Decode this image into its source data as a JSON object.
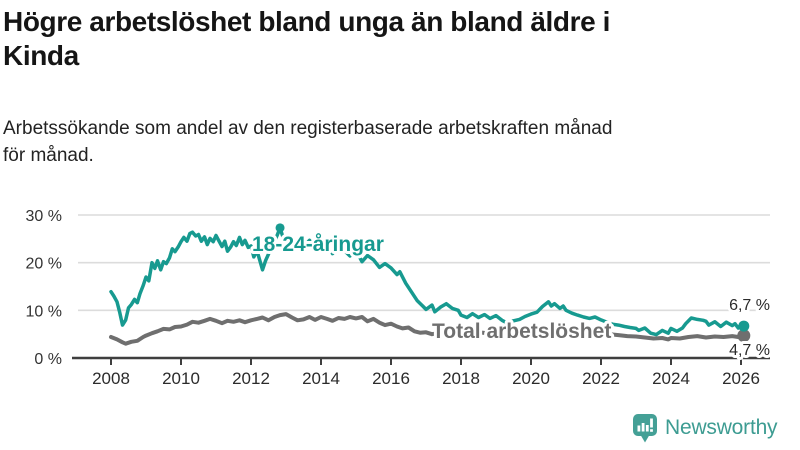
{
  "header": {
    "title": "Högre arbetslöshet bland unga än bland äldre i\nKinda",
    "subtitle": "Arbetssökande som andel av den registerbaserade arbetskraften månad\nför månad."
  },
  "branding": {
    "logo_text": "Newsworthy",
    "logo_icon": "bar-chart-speech-bubble-icon",
    "logo_color": "#44a096"
  },
  "colors": {
    "young_line": "#179a90",
    "total_line": "#6f6f6f",
    "grid": "#dcdcdc",
    "axis": "#3f3f3f",
    "tick_text": "#2b2b2b"
  },
  "chart_data": {
    "type": "line",
    "title": "Högre arbetslöshet bland unga än bland äldre i Kinda",
    "xlabel": "",
    "ylabel": "",
    "x_unit": "year (monthly observations)",
    "xlim": [
      2008,
      2026.2
    ],
    "ylim": [
      0,
      30
    ],
    "grid": "horizontal",
    "legend_position": "inline-labels",
    "yticks": [
      {
        "value": 0,
        "label": "0 %"
      },
      {
        "value": 10,
        "label": "10 %"
      },
      {
        "value": 20,
        "label": "20 %"
      },
      {
        "value": 30,
        "label": "30 %"
      }
    ],
    "xticks": [
      2008,
      2010,
      2012,
      2014,
      2016,
      2018,
      2020,
      2022,
      2024,
      2026
    ],
    "series": [
      {
        "name": "Total arbetslöshet",
        "inline_label": "Total arbetslöshet",
        "end_value_label": "4,7 %",
        "end_value": 4.7,
        "points": [
          [
            2008.0,
            4.4
          ],
          [
            2008.17,
            3.9
          ],
          [
            2008.33,
            3.3
          ],
          [
            2008.42,
            3.0
          ],
          [
            2008.58,
            3.4
          ],
          [
            2008.75,
            3.6
          ],
          [
            2008.92,
            4.4
          ],
          [
            2009.0,
            4.7
          ],
          [
            2009.17,
            5.2
          ],
          [
            2009.33,
            5.6
          ],
          [
            2009.5,
            6.1
          ],
          [
            2009.67,
            6.0
          ],
          [
            2009.83,
            6.5
          ],
          [
            2010.0,
            6.6
          ],
          [
            2010.17,
            7.0
          ],
          [
            2010.33,
            7.6
          ],
          [
            2010.5,
            7.4
          ],
          [
            2010.67,
            7.8
          ],
          [
            2010.83,
            8.2
          ],
          [
            2011.0,
            7.8
          ],
          [
            2011.17,
            7.3
          ],
          [
            2011.33,
            7.8
          ],
          [
            2011.5,
            7.6
          ],
          [
            2011.67,
            7.9
          ],
          [
            2011.83,
            7.5
          ],
          [
            2012.0,
            7.9
          ],
          [
            2012.17,
            8.2
          ],
          [
            2012.33,
            8.5
          ],
          [
            2012.5,
            7.9
          ],
          [
            2012.67,
            8.6
          ],
          [
            2012.83,
            9.0
          ],
          [
            2013.0,
            9.2
          ],
          [
            2013.17,
            8.5
          ],
          [
            2013.33,
            7.9
          ],
          [
            2013.5,
            8.1
          ],
          [
            2013.67,
            8.6
          ],
          [
            2013.83,
            8.0
          ],
          [
            2014.0,
            8.6
          ],
          [
            2014.17,
            8.2
          ],
          [
            2014.33,
            7.8
          ],
          [
            2014.5,
            8.4
          ],
          [
            2014.67,
            8.2
          ],
          [
            2014.83,
            8.6
          ],
          [
            2015.0,
            8.3
          ],
          [
            2015.17,
            8.6
          ],
          [
            2015.33,
            7.7
          ],
          [
            2015.5,
            8.2
          ],
          [
            2015.67,
            7.4
          ],
          [
            2015.83,
            6.9
          ],
          [
            2016.0,
            7.2
          ],
          [
            2016.17,
            6.6
          ],
          [
            2016.33,
            6.2
          ],
          [
            2016.5,
            6.4
          ],
          [
            2016.67,
            5.6
          ],
          [
            2016.83,
            5.3
          ],
          [
            2017.0,
            5.4
          ],
          [
            2017.17,
            5.0
          ],
          [
            2017.33,
            5.2
          ],
          [
            2017.5,
            4.9
          ],
          [
            2017.67,
            5.1
          ],
          [
            2017.83,
            5.0
          ],
          [
            2018.0,
            5.3
          ],
          [
            2018.25,
            5.1
          ],
          [
            2018.5,
            5.4
          ],
          [
            2018.75,
            5.2
          ],
          [
            2019.0,
            5.3
          ],
          [
            2019.25,
            5.0
          ],
          [
            2019.5,
            5.2
          ],
          [
            2019.75,
            5.5
          ],
          [
            2020.0,
            5.7
          ],
          [
            2020.25,
            6.1
          ],
          [
            2020.5,
            6.4
          ],
          [
            2020.75,
            6.2
          ],
          [
            2021.0,
            6.3
          ],
          [
            2021.25,
            6.0
          ],
          [
            2021.5,
            5.8
          ],
          [
            2021.75,
            5.5
          ],
          [
            2022.0,
            5.3
          ],
          [
            2022.25,
            5.0
          ],
          [
            2022.5,
            4.8
          ],
          [
            2022.75,
            4.6
          ],
          [
            2023.0,
            4.5
          ],
          [
            2023.25,
            4.3
          ],
          [
            2023.5,
            4.1
          ],
          [
            2023.75,
            4.2
          ],
          [
            2023.92,
            3.9
          ],
          [
            2024.0,
            4.2
          ],
          [
            2024.25,
            4.1
          ],
          [
            2024.5,
            4.4
          ],
          [
            2024.75,
            4.6
          ],
          [
            2025.0,
            4.3
          ],
          [
            2025.25,
            4.5
          ],
          [
            2025.5,
            4.4
          ],
          [
            2025.75,
            4.6
          ],
          [
            2025.92,
            4.4
          ],
          [
            2026.0,
            4.5
          ],
          [
            2026.08,
            4.7
          ]
        ]
      },
      {
        "name": "18-24-åringar",
        "inline_label": "18-24-åringar",
        "end_value_label": "6,7 %",
        "end_value": 6.7,
        "max_marker": {
          "x": 2012.83,
          "y": 27.3
        },
        "points": [
          [
            2008.0,
            13.9
          ],
          [
            2008.08,
            13.0
          ],
          [
            2008.17,
            11.8
          ],
          [
            2008.25,
            9.5
          ],
          [
            2008.33,
            6.9
          ],
          [
            2008.42,
            8.0
          ],
          [
            2008.5,
            10.5
          ],
          [
            2008.58,
            11.2
          ],
          [
            2008.67,
            12.3
          ],
          [
            2008.75,
            11.6
          ],
          [
            2008.83,
            13.5
          ],
          [
            2008.92,
            15.2
          ],
          [
            2009.0,
            17.0
          ],
          [
            2009.08,
            16.2
          ],
          [
            2009.17,
            20.0
          ],
          [
            2009.25,
            18.8
          ],
          [
            2009.33,
            20.4
          ],
          [
            2009.42,
            18.5
          ],
          [
            2009.5,
            20.2
          ],
          [
            2009.58,
            19.8
          ],
          [
            2009.67,
            21.0
          ],
          [
            2009.75,
            22.9
          ],
          [
            2009.83,
            22.3
          ],
          [
            2009.92,
            23.3
          ],
          [
            2010.0,
            24.4
          ],
          [
            2010.08,
            25.3
          ],
          [
            2010.17,
            24.5
          ],
          [
            2010.25,
            26.1
          ],
          [
            2010.33,
            26.4
          ],
          [
            2010.42,
            25.6
          ],
          [
            2010.5,
            25.9
          ],
          [
            2010.58,
            24.5
          ],
          [
            2010.67,
            25.4
          ],
          [
            2010.75,
            23.8
          ],
          [
            2010.83,
            25.1
          ],
          [
            2010.92,
            24.4
          ],
          [
            2011.0,
            25.7
          ],
          [
            2011.08,
            24.6
          ],
          [
            2011.17,
            23.4
          ],
          [
            2011.25,
            24.5
          ],
          [
            2011.33,
            22.4
          ],
          [
            2011.42,
            23.3
          ],
          [
            2011.5,
            24.4
          ],
          [
            2011.58,
            23.6
          ],
          [
            2011.67,
            25.3
          ],
          [
            2011.75,
            23.8
          ],
          [
            2011.83,
            24.7
          ],
          [
            2011.92,
            23.2
          ],
          [
            2012.0,
            23.5
          ],
          [
            2012.08,
            21.2
          ],
          [
            2012.17,
            22.5
          ],
          [
            2012.33,
            18.5
          ],
          [
            2012.42,
            20.5
          ],
          [
            2012.5,
            21.8
          ],
          [
            2012.58,
            23.2
          ],
          [
            2012.67,
            24.5
          ],
          [
            2012.75,
            25.8
          ],
          [
            2012.83,
            27.3
          ],
          [
            2012.92,
            25.2
          ],
          [
            2013.0,
            24.1
          ],
          [
            2013.17,
            22.6
          ],
          [
            2013.33,
            24.4
          ],
          [
            2013.5,
            23.4
          ],
          [
            2013.67,
            24.7
          ],
          [
            2013.83,
            23.1
          ],
          [
            2014.0,
            25.2
          ],
          [
            2014.17,
            24.0
          ],
          [
            2014.33,
            21.9
          ],
          [
            2014.5,
            23.4
          ],
          [
            2014.67,
            22.5
          ],
          [
            2014.83,
            21.4
          ],
          [
            2015.0,
            22.6
          ],
          [
            2015.17,
            20.2
          ],
          [
            2015.33,
            21.5
          ],
          [
            2015.5,
            20.6
          ],
          [
            2015.67,
            19.0
          ],
          [
            2015.83,
            19.8
          ],
          [
            2016.0,
            18.9
          ],
          [
            2016.17,
            17.5
          ],
          [
            2016.25,
            18.1
          ],
          [
            2016.42,
            15.7
          ],
          [
            2016.58,
            13.9
          ],
          [
            2016.75,
            12.0
          ],
          [
            2016.92,
            10.8
          ],
          [
            2017.0,
            10.2
          ],
          [
            2017.17,
            11.1
          ],
          [
            2017.25,
            9.7
          ],
          [
            2017.42,
            10.7
          ],
          [
            2017.58,
            11.4
          ],
          [
            2017.75,
            10.4
          ],
          [
            2017.92,
            10.0
          ],
          [
            2018.0,
            9.0
          ],
          [
            2018.17,
            8.5
          ],
          [
            2018.33,
            9.3
          ],
          [
            2018.5,
            8.5
          ],
          [
            2018.67,
            9.1
          ],
          [
            2018.83,
            8.3
          ],
          [
            2019.0,
            8.9
          ],
          [
            2019.17,
            7.9
          ],
          [
            2019.33,
            7.3
          ],
          [
            2019.5,
            7.8
          ],
          [
            2019.67,
            8.1
          ],
          [
            2019.83,
            8.7
          ],
          [
            2020.0,
            9.2
          ],
          [
            2020.17,
            9.6
          ],
          [
            2020.33,
            10.8
          ],
          [
            2020.5,
            11.8
          ],
          [
            2020.58,
            10.9
          ],
          [
            2020.67,
            11.4
          ],
          [
            2020.83,
            10.4
          ],
          [
            2020.92,
            10.9
          ],
          [
            2021.0,
            10.0
          ],
          [
            2021.17,
            9.4
          ],
          [
            2021.33,
            9.0
          ],
          [
            2021.5,
            8.6
          ],
          [
            2021.67,
            8.3
          ],
          [
            2021.83,
            8.6
          ],
          [
            2022.0,
            8.0
          ],
          [
            2022.17,
            7.5
          ],
          [
            2022.33,
            7.1
          ],
          [
            2022.5,
            6.9
          ],
          [
            2022.67,
            6.6
          ],
          [
            2022.83,
            6.4
          ],
          [
            2023.0,
            6.2
          ],
          [
            2023.08,
            5.8
          ],
          [
            2023.25,
            6.3
          ],
          [
            2023.42,
            5.2
          ],
          [
            2023.58,
            4.9
          ],
          [
            2023.75,
            5.8
          ],
          [
            2023.92,
            5.2
          ],
          [
            2024.0,
            6.2
          ],
          [
            2024.17,
            5.6
          ],
          [
            2024.33,
            6.3
          ],
          [
            2024.42,
            7.2
          ],
          [
            2024.58,
            8.4
          ],
          [
            2024.75,
            8.1
          ],
          [
            2024.92,
            7.9
          ],
          [
            2025.0,
            7.7
          ],
          [
            2025.08,
            6.9
          ],
          [
            2025.25,
            7.6
          ],
          [
            2025.42,
            6.6
          ],
          [
            2025.58,
            7.5
          ],
          [
            2025.75,
            6.8
          ],
          [
            2025.83,
            7.2
          ],
          [
            2025.92,
            6.3
          ],
          [
            2026.0,
            6.9
          ],
          [
            2026.08,
            6.7
          ]
        ]
      }
    ]
  }
}
